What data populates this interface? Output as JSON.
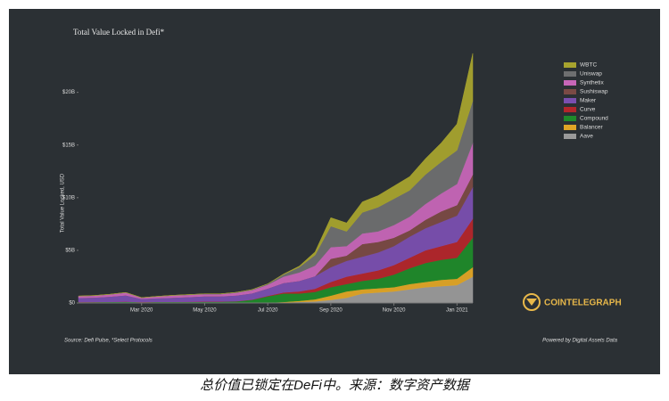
{
  "chart_data": {
    "type": "stacked_area",
    "title": "Total Value Locked in Defi*",
    "y_label": "Total Value Locked, USD",
    "source": "Source: Defi Pulse, *Select Protocols",
    "credit": "Powered by Digital Assets Data",
    "brand": "COINTELEGRAPH",
    "caption": "总价值已锁定在DeFi中。来源：数字资产数据",
    "categories": [
      null,
      null,
      null,
      null,
      "Mar 2020",
      null,
      null,
      null,
      "May 2020",
      null,
      null,
      null,
      "Jul 2020",
      null,
      null,
      null,
      "Sep 2020",
      null,
      null,
      null,
      "Nov 2020",
      null,
      null,
      null,
      "Jan 2021",
      null
    ],
    "ylim": [
      0,
      22
    ],
    "yticks": [
      {
        "value": 0,
        "label": "$0"
      },
      {
        "value": 5,
        "label": "$5B"
      },
      {
        "value": 10,
        "label": "$10B"
      },
      {
        "value": 15,
        "label": "$15B"
      },
      {
        "value": 20,
        "label": "$20B"
      }
    ],
    "legend": "top-right",
    "series": [
      {
        "name": "Aave",
        "color": "#9a9a9a",
        "values": [
          0,
          0,
          0,
          0,
          0,
          0,
          0,
          0,
          0,
          0,
          0,
          0,
          0.02,
          0.05,
          0.1,
          0.15,
          0.3,
          0.5,
          0.9,
          1.0,
          1.1,
          1.3,
          1.5,
          1.6,
          1.7,
          2.5
        ]
      },
      {
        "name": "Balancer",
        "color": "#e0a526",
        "values": [
          0,
          0,
          0,
          0,
          0,
          0,
          0,
          0,
          0,
          0,
          0,
          0,
          0.01,
          0.05,
          0.1,
          0.2,
          0.4,
          0.6,
          0.4,
          0.4,
          0.4,
          0.5,
          0.5,
          0.6,
          0.6,
          0.9
        ]
      },
      {
        "name": "Compound",
        "color": "#1f8a2a",
        "values": [
          0.08,
          0.09,
          0.1,
          0.12,
          0.08,
          0.1,
          0.1,
          0.1,
          0.12,
          0.12,
          0.15,
          0.3,
          0.6,
          0.8,
          0.7,
          0.7,
          0.8,
          0.7,
          0.8,
          0.9,
          1.2,
          1.5,
          1.8,
          1.9,
          2.0,
          2.8
        ]
      },
      {
        "name": "Curve",
        "color": "#b3262b",
        "values": [
          0.01,
          0.01,
          0.01,
          0.01,
          0.01,
          0.01,
          0.01,
          0.02,
          0.02,
          0.02,
          0.02,
          0.02,
          0.05,
          0.1,
          0.2,
          0.3,
          0.5,
          0.7,
          0.7,
          0.8,
          0.9,
          1.0,
          1.2,
          1.3,
          1.5,
          1.8
        ]
      },
      {
        "name": "Maker",
        "color": "#7a4fb0",
        "values": [
          0.4,
          0.42,
          0.5,
          0.6,
          0.3,
          0.35,
          0.4,
          0.45,
          0.5,
          0.5,
          0.55,
          0.6,
          0.7,
          0.9,
          1.0,
          1.2,
          1.4,
          1.5,
          1.6,
          1.7,
          1.8,
          2.0,
          2.1,
          2.3,
          2.5,
          3.0
        ]
      },
      {
        "name": "Sushiswap",
        "color": "#7a4a45",
        "values": [
          0,
          0,
          0,
          0,
          0,
          0,
          0,
          0,
          0,
          0,
          0,
          0,
          0,
          0,
          0,
          0,
          0.8,
          0.5,
          1.2,
          1.0,
          0.8,
          0.6,
          0.8,
          1.0,
          1.0,
          1.2
        ]
      },
      {
        "name": "Synthetix",
        "color": "#c766b8",
        "values": [
          0.15,
          0.17,
          0.2,
          0.25,
          0.1,
          0.15,
          0.2,
          0.2,
          0.2,
          0.2,
          0.25,
          0.3,
          0.35,
          0.6,
          0.8,
          1.0,
          1.1,
          0.9,
          1.0,
          1.0,
          1.2,
          1.3,
          1.5,
          1.7,
          2.0,
          3.0
        ]
      },
      {
        "name": "Uniswap",
        "color": "#6e6f70",
        "values": [
          0.02,
          0.02,
          0.02,
          0.02,
          0.02,
          0.02,
          0.02,
          0.03,
          0.03,
          0.03,
          0.04,
          0.05,
          0.08,
          0.2,
          0.5,
          1.0,
          2.0,
          1.4,
          2.0,
          2.3,
          2.5,
          2.5,
          2.8,
          3.0,
          3.2,
          4.0
        ]
      },
      {
        "name": "WBTC",
        "color": "#a7a32e",
        "values": [
          0,
          0,
          0,
          0,
          0,
          0,
          0,
          0,
          0,
          0,
          0,
          0,
          0.01,
          0.05,
          0.1,
          0.3,
          0.8,
          0.8,
          1.0,
          1.1,
          1.2,
          1.3,
          1.5,
          1.8,
          2.5,
          4.5
        ]
      }
    ]
  }
}
